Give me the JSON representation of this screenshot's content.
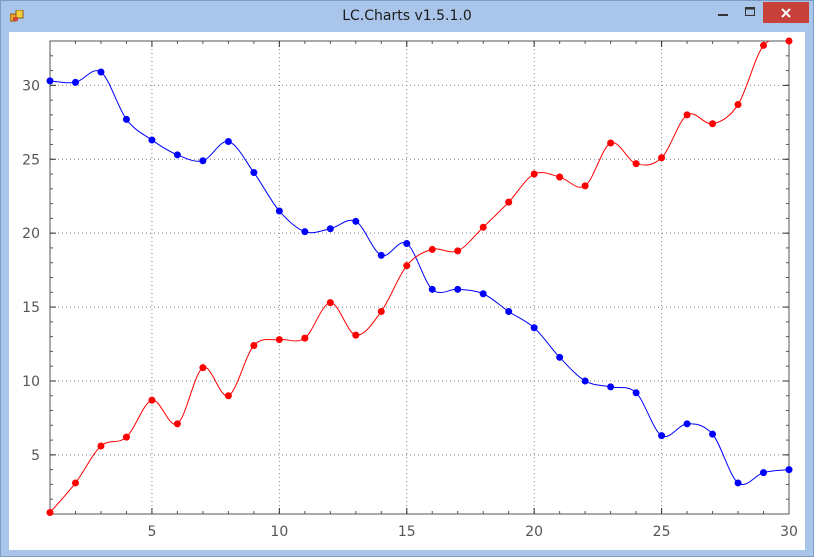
{
  "window": {
    "title": "LC.Charts v1.5.1.0",
    "controls": [
      "minimize",
      "maximize",
      "close"
    ]
  },
  "colors": {
    "series_a": "#0000ff",
    "series_b": "#ff0000",
    "close_button": "#c7413a",
    "grid": "#808080"
  },
  "chart_data": {
    "type": "line",
    "title": "",
    "xlabel": "",
    "ylabel": "",
    "xlim": [
      1,
      30
    ],
    "ylim": [
      1,
      33
    ],
    "xticks": [
      5,
      10,
      15,
      20,
      25,
      30
    ],
    "yticks": [
      5,
      10,
      15,
      20,
      25,
      30
    ],
    "grid": true,
    "legend": "none",
    "x": [
      1,
      2,
      3,
      4,
      5,
      6,
      7,
      8,
      9,
      10,
      11,
      12,
      13,
      14,
      15,
      16,
      17,
      18,
      19,
      20,
      21,
      22,
      23,
      24,
      25,
      26,
      27,
      28,
      29,
      30
    ],
    "series": [
      {
        "color": "#0000ff",
        "values": [
          30.3,
          30.2,
          30.9,
          27.7,
          26.3,
          25.3,
          24.9,
          26.2,
          24.1,
          21.5,
          20.1,
          20.3,
          20.8,
          18.5,
          19.3,
          16.2,
          16.2,
          15.9,
          14.7,
          13.6,
          11.6,
          10.0,
          9.6,
          9.2,
          6.3,
          7.1,
          6.4,
          3.1,
          3.8,
          4.0
        ]
      },
      {
        "color": "#ff0000",
        "values": [
          1.1,
          3.1,
          5.6,
          6.2,
          8.7,
          7.1,
          10.9,
          9.0,
          12.4,
          12.8,
          12.9,
          15.3,
          13.1,
          14.7,
          17.8,
          18.9,
          18.8,
          20.4,
          22.1,
          24.0,
          23.8,
          23.2,
          26.1,
          24.7,
          25.1,
          28.0,
          27.4,
          28.7,
          32.7,
          33.0
        ]
      }
    ]
  }
}
